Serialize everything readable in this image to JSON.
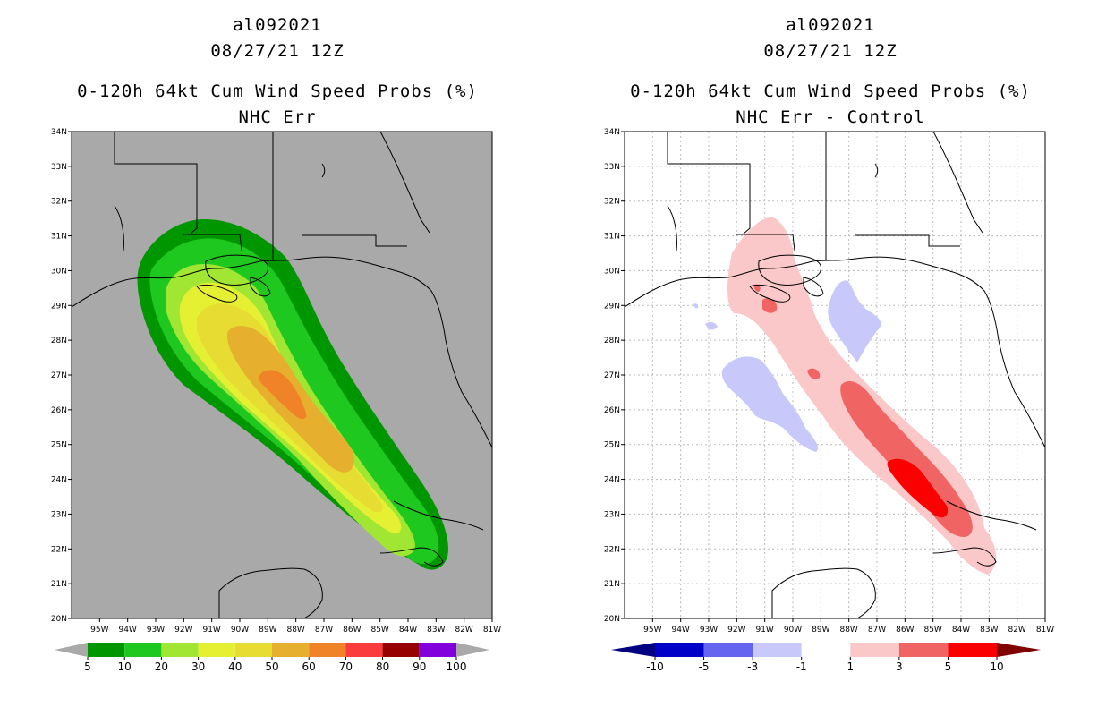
{
  "left": {
    "storm_id": "al092021",
    "datetime": "08/27/21 12Z",
    "product": "0-120h 64kt Cum Wind Speed Probs (%)",
    "subtitle": "NHC Err",
    "colorbar": {
      "labels": [
        "5",
        "10",
        "20",
        "30",
        "40",
        "50",
        "60",
        "70",
        "80",
        "90",
        "100"
      ],
      "colors": [
        "#009600",
        "#1ec81e",
        "#a0e632",
        "#e6f032",
        "#e6dc32",
        "#e6af2d",
        "#f08228",
        "#fa3c3c",
        "#960000",
        "#8200dc"
      ]
    }
  },
  "right": {
    "storm_id": "al092021",
    "datetime": "08/27/21 12Z",
    "product": "0-120h 64kt Cum Wind Speed Probs (%)",
    "subtitle": "NHC Err - Control",
    "colorbar": {
      "labels": [
        "-10",
        "-5",
        "-3",
        "-1",
        "1",
        "3",
        "5",
        "10"
      ],
      "colors": [
        "#0000c8",
        "#6464f0",
        "#c8c8fa",
        "#ffffff",
        "#fac8c8",
        "#f06464",
        "#fa0000"
      ]
    }
  },
  "axes": {
    "lat_labels": [
      "34N",
      "33N",
      "32N",
      "31N",
      "30N",
      "29N",
      "28N",
      "27N",
      "26N",
      "25N",
      "24N",
      "23N",
      "22N",
      "21N",
      "20N"
    ],
    "lon_labels": [
      "95W",
      "94W",
      "93W",
      "92W",
      "91W",
      "90W",
      "89W",
      "88W",
      "87W",
      "86W",
      "85W",
      "84W",
      "83W",
      "82W",
      "81W"
    ],
    "lat_range": [
      20,
      34
    ],
    "lon_range": [
      -96,
      -81
    ]
  },
  "colors": {
    "land_mask_bg": "#a9a9a9",
    "grid_dotted": "#bbbbbb"
  }
}
